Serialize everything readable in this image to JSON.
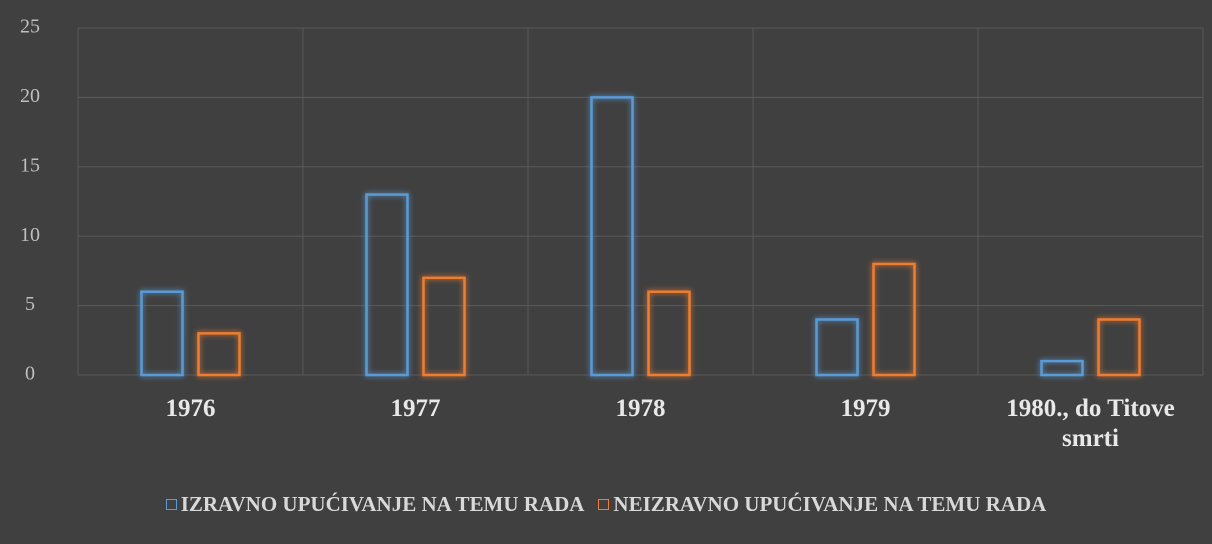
{
  "chart_data": {
    "type": "bar",
    "categories": [
      "1976",
      "1977",
      "1978",
      "1979",
      "1980., do Titove smrti"
    ],
    "series": [
      {
        "name": "IZRAVNO UPUĆIVANJE NA TEMU RADA",
        "color": "#5b9bd5",
        "values": [
          6,
          13,
          20,
          4,
          1
        ]
      },
      {
        "name": "NEIZRAVNO UPUĆIVANJE NA TEMU RADA",
        "color": "#ed7d31",
        "values": [
          3,
          7,
          6,
          8,
          4
        ]
      }
    ],
    "ylim": [
      0,
      25
    ],
    "yticks": [
      0,
      5,
      10,
      15,
      20,
      25
    ],
    "grid": true,
    "legend": "bottom"
  }
}
